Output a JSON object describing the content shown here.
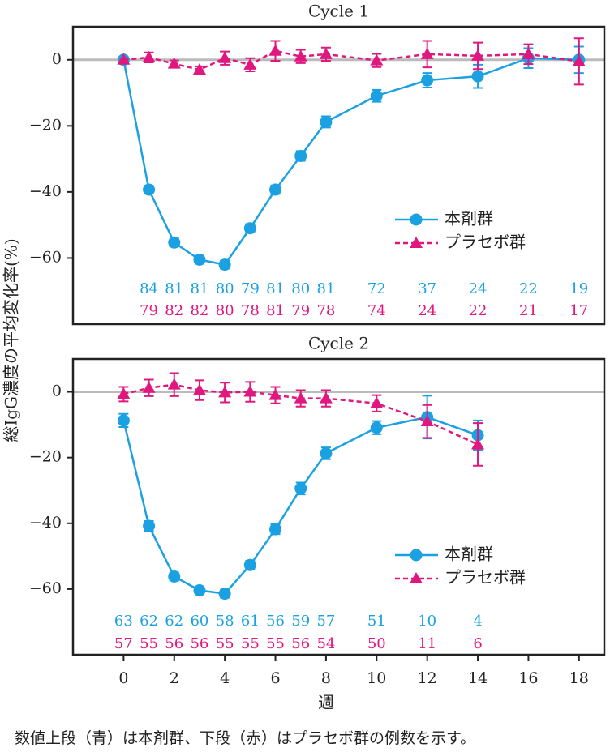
{
  "chart_data": [
    {
      "type": "line",
      "title": "Cycle 1",
      "x": [
        0,
        1,
        2,
        3,
        4,
        5,
        6,
        7,
        8,
        10,
        12,
        14,
        16,
        18
      ],
      "xlim": [
        -2,
        19
      ],
      "ylim": [
        -80,
        10
      ],
      "yticks": [
        0,
        {
          "value": -20,
          "label": "−20"
        },
        {
          "value": -40,
          "label": "−40"
        },
        {
          "value": -60,
          "label": "−60"
        }
      ],
      "legend": "lower right",
      "series": [
        {
          "name": "本剤群",
          "color": "#1ba1e2",
          "marker": "circle",
          "linestyle": "solid",
          "values": [
            0,
            -39.3,
            -55.3,
            -60.5,
            -62,
            -51,
            -39.3,
            -29.1,
            -18.8,
            -10.9,
            -6.2,
            -5,
            0.5,
            0
          ],
          "errors": [
            0,
            1.2,
            1.2,
            1.2,
            1.2,
            1.3,
            1.3,
            1.5,
            1.7,
            1.8,
            2.2,
            3.5,
            3,
            4
          ],
          "n_x": [
            1,
            2,
            3,
            4,
            5,
            6,
            7,
            8,
            10,
            12,
            14,
            16,
            18
          ],
          "n": [
            84,
            81,
            81,
            80,
            79,
            81,
            80,
            81,
            72,
            37,
            24,
            22,
            19
          ]
        },
        {
          "name": "プラセボ群",
          "color": "#e0177f",
          "marker": "triangle",
          "linestyle": "dashed",
          "values": [
            0,
            0.7,
            -1.2,
            -3,
            0.5,
            -1.5,
            2.7,
            1,
            1.7,
            -0.2,
            1.7,
            1.2,
            1.7,
            -0.5
          ],
          "errors": [
            0,
            1.5,
            1,
            1,
            2,
            2,
            3,
            2,
            2,
            2,
            4,
            4,
            3,
            7
          ],
          "n_x": [
            1,
            2,
            3,
            4,
            5,
            6,
            7,
            8,
            10,
            12,
            14,
            16,
            18
          ],
          "n": [
            79,
            82,
            82,
            80,
            78,
            81,
            79,
            78,
            74,
            24,
            22,
            21,
            17
          ]
        }
      ]
    },
    {
      "type": "line",
      "title": "Cycle 2",
      "x": [
        0,
        1,
        2,
        3,
        4,
        5,
        6,
        7,
        8,
        10,
        12,
        14
      ],
      "xlim": [
        -2,
        19
      ],
      "xticks": [
        0,
        2,
        4,
        6,
        8,
        10,
        12,
        14,
        16,
        18
      ],
      "ylim": [
        -80,
        10
      ],
      "yticks": [
        0,
        {
          "value": -20,
          "label": "−20"
        },
        {
          "value": -40,
          "label": "−40"
        },
        {
          "value": -60,
          "label": "−60"
        }
      ],
      "legend": "lower right",
      "series": [
        {
          "name": "本剤群",
          "color": "#1ba1e2",
          "marker": "circle",
          "linestyle": "solid",
          "values": [
            -8.7,
            -40.8,
            -56.2,
            -60.4,
            -61.4,
            -52.7,
            -41.8,
            -29.4,
            -18.7,
            -10.9,
            -7.7,
            -13.2
          ],
          "errors": [
            2,
            1.5,
            1.2,
            1.2,
            1.2,
            1.3,
            1.5,
            1.8,
            1.8,
            2,
            6.5,
            4.5
          ],
          "n_x": [
            0,
            1,
            2,
            3,
            4,
            5,
            6,
            7,
            8,
            10,
            12,
            14
          ],
          "n": [
            63,
            62,
            62,
            60,
            58,
            61,
            56,
            59,
            57,
            51,
            10,
            4
          ]
        },
        {
          "name": "プラセボ群",
          "color": "#e0177f",
          "marker": "triangle",
          "linestyle": "dashed",
          "values": [
            -0.7,
            1.2,
            2.2,
            0.5,
            -0.2,
            0,
            -1,
            -2,
            -2,
            -3.5,
            -9,
            -16
          ],
          "errors": [
            2.2,
            2.5,
            3.5,
            3,
            3,
            3,
            2.5,
            2.5,
            2.5,
            2.5,
            5,
            6.5
          ],
          "n_x": [
            0,
            1,
            2,
            3,
            4,
            5,
            6,
            7,
            8,
            10,
            12,
            14
          ],
          "n": [
            57,
            55,
            56,
            56,
            55,
            55,
            55,
            56,
            54,
            50,
            11,
            6
          ]
        }
      ]
    }
  ],
  "y_label": "総IgG濃度の平均変化率(%)",
  "x_label": "週",
  "footnote": "数値上段（青）は本剤群、下段（赤）はプラセボ群の例数を示す。"
}
